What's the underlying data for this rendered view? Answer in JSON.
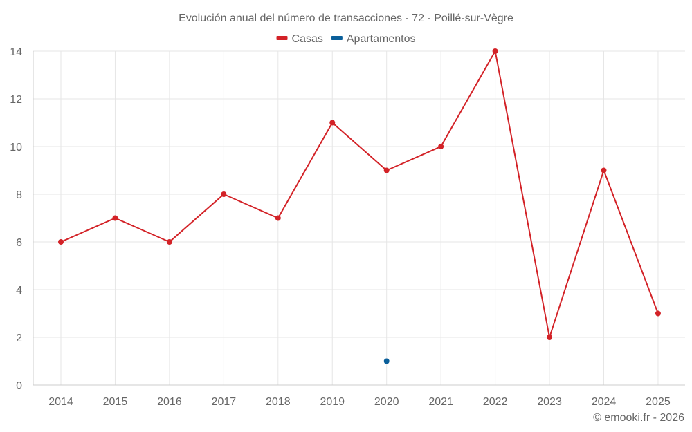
{
  "chart_data": {
    "type": "line",
    "title": "Evolución anual del número de transacciones - 72 - Poillé-sur-Vègre",
    "x": [
      2014,
      2015,
      2016,
      2017,
      2018,
      2019,
      2020,
      2021,
      2022,
      2023,
      2024,
      2025
    ],
    "x_tick_labels": [
      "2014",
      "2015",
      "2016",
      "2017",
      "2018",
      "2019",
      "2020",
      "2021",
      "2022",
      "2023",
      "2024",
      "2025"
    ],
    "y_ticks": [
      0,
      2,
      4,
      6,
      8,
      10,
      12,
      14
    ],
    "ylim": [
      0,
      14
    ],
    "xlabel": "",
    "ylabel": "",
    "grid": true,
    "legend_position": "top-center",
    "series": [
      {
        "name": "Casas",
        "color": "#d32227",
        "values": [
          6,
          7,
          6,
          8,
          7,
          11,
          9,
          10,
          14,
          2,
          9,
          3
        ]
      },
      {
        "name": "Apartamentos",
        "color": "#0a5f9a",
        "values": [
          null,
          null,
          null,
          null,
          null,
          null,
          1,
          null,
          null,
          null,
          null,
          null
        ]
      }
    ]
  },
  "credit": "© emooki.fr - 2026"
}
